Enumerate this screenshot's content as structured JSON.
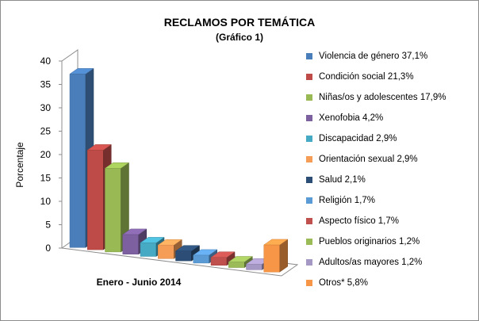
{
  "chart_data": {
    "type": "bar",
    "title": "RECLAMOS POR TEMÁTICA",
    "subtitle": "(Gráfico 1)",
    "xlabel": "Enero - Junio 2014",
    "ylabel": "Porcentaje",
    "ylim": [
      0,
      40
    ],
    "yticks": [
      "0",
      "5",
      "10",
      "15",
      "20",
      "25",
      "30",
      "35",
      "40"
    ],
    "three_d": true,
    "grid": false,
    "legend_position": "right",
    "categories": [
      "Violencia de género",
      "Condición social",
      "Niñas/os y adolescentes",
      "Xenofobia",
      "Discapacidad",
      "Orientación sexual",
      "Salud",
      "Religión",
      "Aspecto físico",
      "Pueblos originarios",
      "Adultos/as mayores",
      "Otros*"
    ],
    "values": [
      37.1,
      21.3,
      17.9,
      4.2,
      2.9,
      2.9,
      2.1,
      1.7,
      1.7,
      1.2,
      1.2,
      5.8
    ],
    "legend_labels": [
      "Violencia de género 37,1%",
      "Condición social 21,3%",
      "Niñas/os y adolescentes 17,9%",
      "Xenofobia 4,2%",
      "Discapacidad 2,9%",
      "Orientación sexual 2,9%",
      "Salud 2,1%",
      "Religión 1,7%",
      "Aspecto físico 1,7%",
      "Pueblos originarios 1,2%",
      "Adultos/as mayores 1,2%",
      "Otros* 5,8%"
    ],
    "colors": [
      "#4a7ebb",
      "#be4b48",
      "#98b954",
      "#7d60a0",
      "#46aac5",
      "#f59d56",
      "#2c4d75",
      "#5b9bd5",
      "#c0504d",
      "#9bbb59",
      "#a698c4",
      "#f79646"
    ]
  }
}
